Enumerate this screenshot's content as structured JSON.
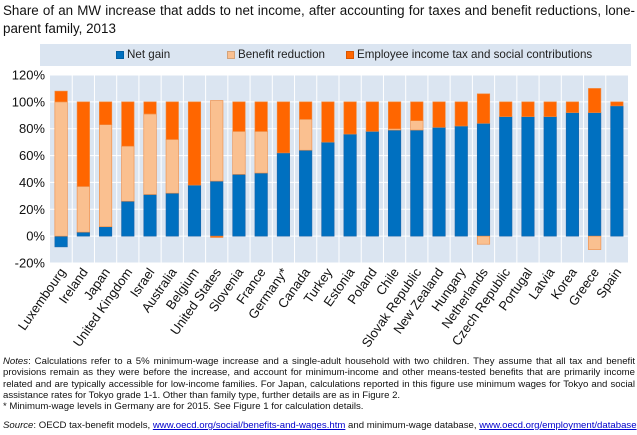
{
  "chart_data": {
    "type": "bar",
    "stacked": true,
    "title": "Share of an MW increase that adds to net income, after accounting for taxes and benefit reductions, lone-parent family, 2013",
    "xlabel": "",
    "ylabel": "",
    "ylim": [
      -20,
      120
    ],
    "yticks": [
      "-20%",
      "0%",
      "20%",
      "40%",
      "60%",
      "80%",
      "100%",
      "120%"
    ],
    "grid": true,
    "legend_position": "top",
    "categories": [
      "Luxembourg",
      "Ireland",
      "Japan",
      "United Kingdom",
      "Israel",
      "Australia",
      "Belgium",
      "United States",
      "Slovenia",
      "France",
      "Germany*",
      "Canada",
      "Turkey",
      "Estonia",
      "Poland",
      "Chile",
      "Slovak Republic",
      "New Zealand",
      "Hungary",
      "Netherlands",
      "Czech Republic",
      "Portugal",
      "Latvia",
      "Korea",
      "Greece",
      "Spain"
    ],
    "series": [
      {
        "name": "Net gain",
        "color": "#0070c0",
        "values": [
          -8,
          3,
          7,
          26,
          31,
          32,
          38,
          41,
          46,
          47,
          62,
          64,
          70,
          76,
          78,
          79,
          79,
          81,
          82,
          84,
          89,
          89,
          89,
          92,
          92,
          97
        ]
      },
      {
        "name": "Benefit reduction",
        "color": "#fac090",
        "values": [
          100,
          34,
          76,
          41,
          60,
          40,
          0,
          60,
          32,
          31,
          0,
          23,
          0,
          0,
          0,
          1,
          7,
          0,
          0,
          -6,
          0,
          0,
          0,
          0,
          -10,
          0
        ]
      },
      {
        "name": "Employee income tax and social contributions",
        "color": "#ff6600",
        "values": [
          8,
          63,
          17,
          33,
          9,
          28,
          62,
          -1,
          22,
          22,
          38,
          13,
          30,
          24,
          22,
          20,
          14,
          19,
          18,
          22,
          11,
          11,
          11,
          8,
          18,
          3
        ]
      }
    ]
  },
  "notes": {
    "label": "Notes",
    "text": ": Calculations refer to a 5% minimum-wage increase and a single-adult household with two children. They assume that all tax and benefit provisions remain as they were before the increase, and account for minimum-income and other means-tested benefits that are primarily income related and are typically accessible for low-income families. For Japan, calculations reported in this figure use minimum wages for Tokyo and social assistance rates for Tokyo grade 1-1. Other than family type, further details are as in Figure 2.",
    "footnote": "* Minimum-wage levels in Germany are for 2015. See Figure 1 for calculation details."
  },
  "source": {
    "label": "Source",
    "text1": ": OECD tax-benefit models, ",
    "link1": "www.oecd.org/social/benefits-and-wages.htm",
    "text2": " and minimum-wage database, ",
    "link2": "www.oecd.org/employment/database",
    "text3": "."
  }
}
